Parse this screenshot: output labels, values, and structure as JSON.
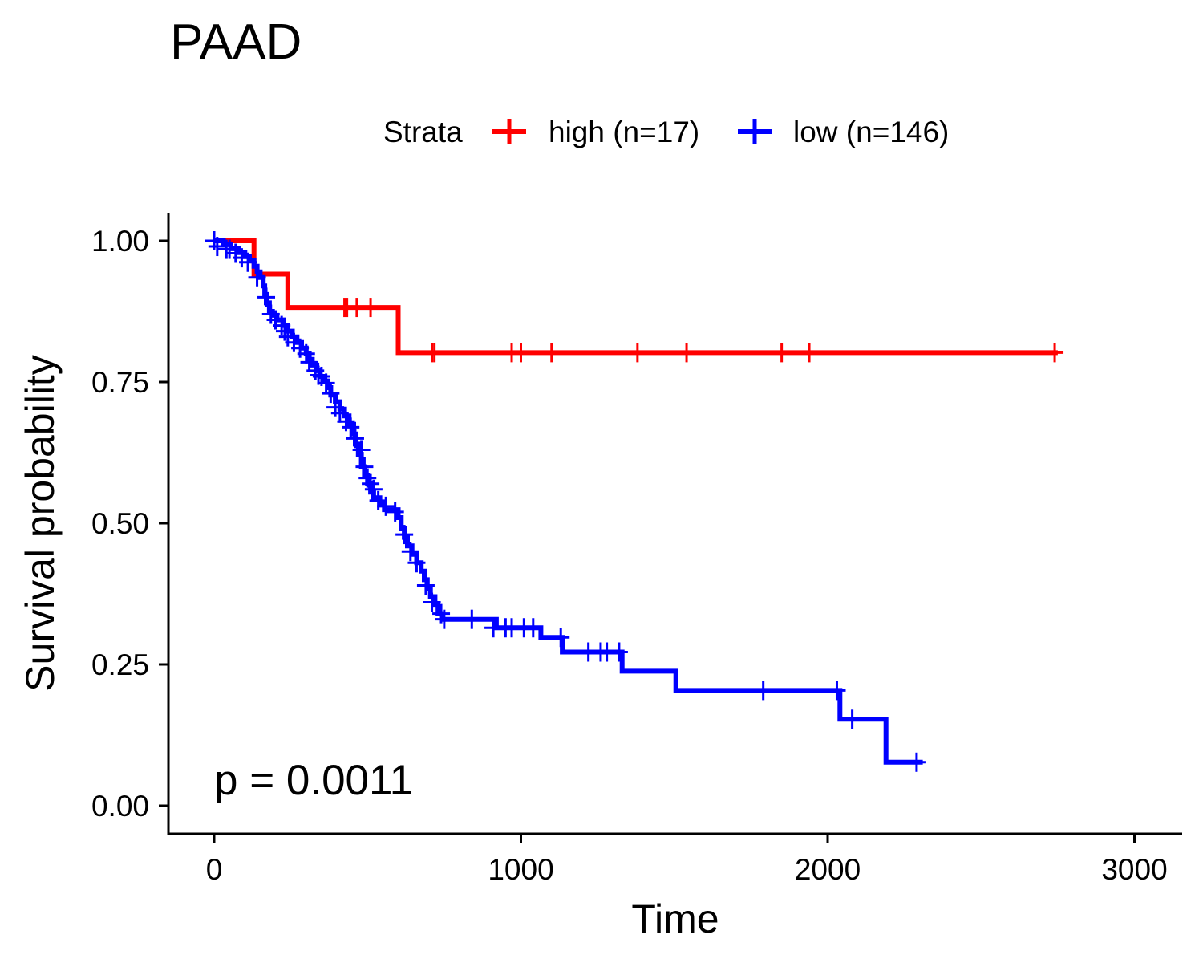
{
  "chart_data": {
    "type": "line",
    "subtype": "kaplan-meier",
    "title": "PAAD",
    "xlabel": "Time",
    "ylabel": "Survival probability",
    "xlim": [
      -150,
      3150
    ],
    "ylim": [
      -0.05,
      1.05
    ],
    "xticks": [
      0,
      1000,
      2000,
      3000
    ],
    "xtick_labels": [
      "0",
      "1000",
      "2000",
      "3000"
    ],
    "yticks": [
      0,
      0.25,
      0.5,
      0.75,
      1.0
    ],
    "ytick_labels": [
      "0.00",
      "0.25",
      "0.50",
      "0.75",
      "1.00"
    ],
    "grid": false,
    "legend": {
      "title": "Strata",
      "placement": "top",
      "entries": [
        "high (n=17)",
        "low (n=146)"
      ]
    },
    "annotation": "p = 0.0011",
    "series": [
      {
        "name": "high (n=17)",
        "color": "#ff0000",
        "steps": [
          [
            0,
            1.0
          ],
          [
            130,
            0.941
          ],
          [
            240,
            0.882
          ],
          [
            600,
            0.802
          ],
          [
            2750,
            0.802
          ]
        ],
        "censor": [
          [
            425,
            0.882
          ],
          [
            433,
            0.882
          ],
          [
            465,
            0.882
          ],
          [
            510,
            0.882
          ],
          [
            710,
            0.802
          ],
          [
            718,
            0.802
          ],
          [
            970,
            0.802
          ],
          [
            1000,
            0.802
          ],
          [
            1100,
            0.802
          ],
          [
            1380,
            0.802
          ],
          [
            1540,
            0.802
          ],
          [
            1850,
            0.802
          ],
          [
            1940,
            0.802
          ],
          [
            2740,
            0.802
          ]
        ]
      },
      {
        "name": "low (n=146)",
        "color": "#0000ff",
        "steps": [
          [
            0,
            1.0
          ],
          [
            30,
            0.993
          ],
          [
            55,
            0.986
          ],
          [
            80,
            0.979
          ],
          [
            100,
            0.972
          ],
          [
            115,
            0.965
          ],
          [
            130,
            0.955
          ],
          [
            140,
            0.945
          ],
          [
            150,
            0.935
          ],
          [
            160,
            0.92
          ],
          [
            165,
            0.905
          ],
          [
            170,
            0.89
          ],
          [
            180,
            0.875
          ],
          [
            190,
            0.868
          ],
          [
            205,
            0.86
          ],
          [
            225,
            0.85
          ],
          [
            240,
            0.84
          ],
          [
            255,
            0.83
          ],
          [
            270,
            0.82
          ],
          [
            285,
            0.81
          ],
          [
            300,
            0.8
          ],
          [
            310,
            0.79
          ],
          [
            320,
            0.78
          ],
          [
            335,
            0.77
          ],
          [
            345,
            0.76
          ],
          [
            360,
            0.752
          ],
          [
            370,
            0.74
          ],
          [
            380,
            0.727
          ],
          [
            395,
            0.715
          ],
          [
            410,
            0.702
          ],
          [
            425,
            0.69
          ],
          [
            440,
            0.675
          ],
          [
            455,
            0.658
          ],
          [
            460,
            0.64
          ],
          [
            470,
            0.622
          ],
          [
            480,
            0.6
          ],
          [
            490,
            0.585
          ],
          [
            500,
            0.57
          ],
          [
            510,
            0.555
          ],
          [
            520,
            0.545
          ],
          [
            540,
            0.535
          ],
          [
            555,
            0.524
          ],
          [
            600,
            0.51
          ],
          [
            610,
            0.49
          ],
          [
            620,
            0.475
          ],
          [
            630,
            0.46
          ],
          [
            645,
            0.445
          ],
          [
            660,
            0.43
          ],
          [
            675,
            0.415
          ],
          [
            685,
            0.4
          ],
          [
            695,
            0.385
          ],
          [
            705,
            0.37
          ],
          [
            720,
            0.355
          ],
          [
            730,
            0.34
          ],
          [
            745,
            0.33
          ],
          [
            920,
            0.315
          ],
          [
            1065,
            0.298
          ],
          [
            1135,
            0.272
          ],
          [
            1330,
            0.238
          ],
          [
            1505,
            0.204
          ],
          [
            2040,
            0.153
          ],
          [
            2190,
            0.077
          ],
          [
            2310,
            0.077
          ]
        ],
        "censor": [
          [
            0,
            1.0
          ],
          [
            10,
            0.99
          ],
          [
            40,
            0.985
          ],
          [
            50,
            0.985
          ],
          [
            70,
            0.978
          ],
          [
            90,
            0.97
          ],
          [
            110,
            0.962
          ],
          [
            140,
            0.935
          ],
          [
            170,
            0.9
          ],
          [
            185,
            0.87
          ],
          [
            200,
            0.86
          ],
          [
            220,
            0.85
          ],
          [
            230,
            0.84
          ],
          [
            240,
            0.83
          ],
          [
            260,
            0.82
          ],
          [
            280,
            0.81
          ],
          [
            300,
            0.8
          ],
          [
            310,
            0.785
          ],
          [
            330,
            0.77
          ],
          [
            340,
            0.762
          ],
          [
            350,
            0.76
          ],
          [
            365,
            0.748
          ],
          [
            380,
            0.73
          ],
          [
            395,
            0.705
          ],
          [
            410,
            0.695
          ],
          [
            430,
            0.68
          ],
          [
            445,
            0.67
          ],
          [
            460,
            0.65
          ],
          [
            480,
            0.63
          ],
          [
            490,
            0.6
          ],
          [
            500,
            0.58
          ],
          [
            510,
            0.57
          ],
          [
            520,
            0.56
          ],
          [
            535,
            0.54
          ],
          [
            560,
            0.53
          ],
          [
            590,
            0.52
          ],
          [
            620,
            0.48
          ],
          [
            640,
            0.45
          ],
          [
            660,
            0.43
          ],
          [
            690,
            0.39
          ],
          [
            710,
            0.36
          ],
          [
            740,
            0.34
          ],
          [
            750,
            0.33
          ],
          [
            840,
            0.33
          ],
          [
            910,
            0.315
          ],
          [
            950,
            0.315
          ],
          [
            970,
            0.315
          ],
          [
            1010,
            0.315
          ],
          [
            1040,
            0.315
          ],
          [
            1130,
            0.298
          ],
          [
            1220,
            0.272
          ],
          [
            1260,
            0.272
          ],
          [
            1280,
            0.272
          ],
          [
            1320,
            0.272
          ],
          [
            1790,
            0.204
          ],
          [
            2030,
            0.204
          ],
          [
            2080,
            0.153
          ],
          [
            2290,
            0.077
          ]
        ]
      }
    ]
  }
}
